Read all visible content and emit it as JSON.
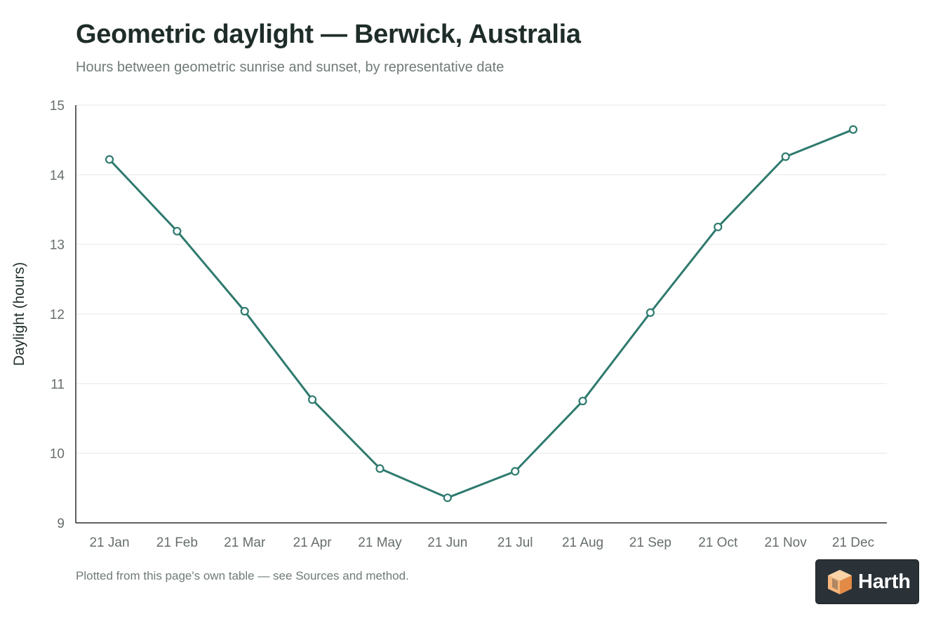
{
  "header": {
    "title": "Geometric daylight — Berwick, Australia",
    "subtitle": "Hours between geometric sunrise and sunset, by representative date"
  },
  "chart_data": {
    "type": "line",
    "title": "Geometric daylight — Berwick, Australia",
    "subtitle": "Hours between geometric sunrise and sunset, by representative date",
    "xlabel": "",
    "ylabel": "Daylight (hours)",
    "categories": [
      "21 Jan",
      "21 Feb",
      "21 Mar",
      "21 Apr",
      "21 May",
      "21 Jun",
      "21 Jul",
      "21 Aug",
      "21 Sep",
      "21 Oct",
      "21 Nov",
      "21 Dec"
    ],
    "series": [
      {
        "values": [
          14.22,
          13.19,
          12.04,
          10.77,
          9.78,
          9.36,
          9.74,
          10.75,
          12.02,
          13.25,
          14.26,
          14.65
        ],
        "color": "#2e7a6e"
      }
    ],
    "ylim": [
      9,
      15
    ],
    "yticks": [
      9,
      10,
      11,
      12,
      13,
      14,
      15
    ],
    "grid": true,
    "legend": "none"
  },
  "footnote": "Plotted from this page's own table — see Sources and method.",
  "brand": {
    "name": "Harth",
    "icon": "cube-logo-icon",
    "colors": {
      "badge_bg": "#2a3238",
      "cube_light": "#f6b57a",
      "cube_dark": "#e38b46"
    }
  }
}
